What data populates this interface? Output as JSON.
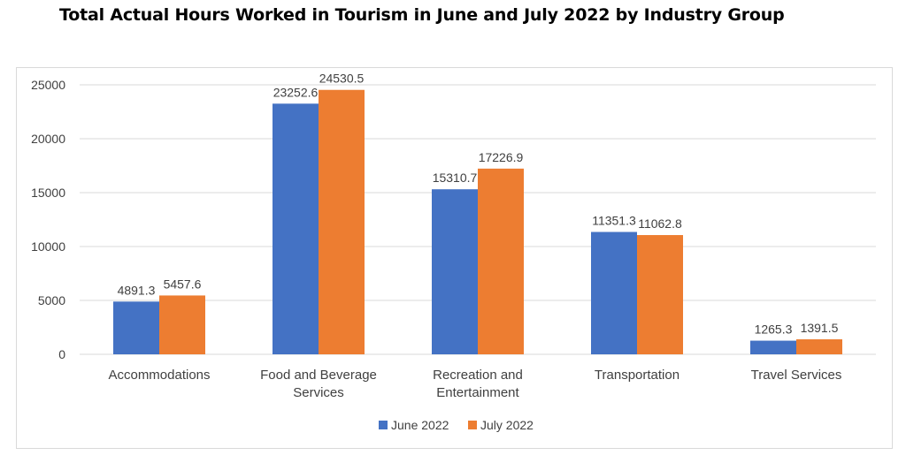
{
  "title": "Total Actual Hours Worked in Tourism in June and July 2022 by Industry Group",
  "colors": {
    "june": "#4472C4",
    "july": "#ED7D31",
    "grid": "#d9d9d9",
    "axis_text": "#404040"
  },
  "chart_data": {
    "type": "bar",
    "title": "Total Actual Hours Worked in Tourism in June and July 2022 by Industry Group",
    "xlabel": "",
    "ylabel": "",
    "categories": [
      [
        "Accommodations"
      ],
      [
        "Food and Beverage",
        "Services"
      ],
      [
        "Recreation and",
        "Entertainment"
      ],
      [
        "Transportation"
      ],
      [
        "Travel Services"
      ]
    ],
    "series": [
      {
        "name": "June 2022",
        "color": "#4472C4",
        "values": [
          4891.3,
          23252.6,
          15310.7,
          11351.3,
          1265.3
        ]
      },
      {
        "name": "July 2022",
        "color": "#ED7D31",
        "values": [
          5457.6,
          24530.5,
          17226.9,
          11062.8,
          1391.5
        ]
      }
    ],
    "ylim": [
      0,
      25000
    ],
    "yticks": [
      0,
      5000,
      10000,
      15000,
      20000,
      25000
    ],
    "grid": true,
    "legend": "bottom-center"
  }
}
